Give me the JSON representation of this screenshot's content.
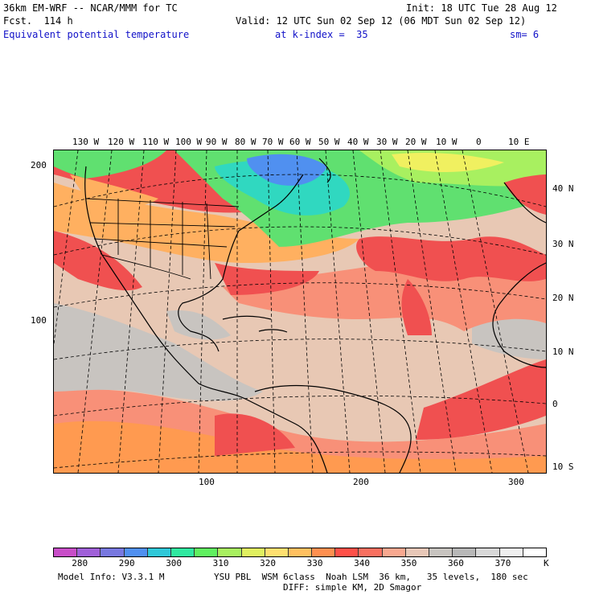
{
  "header": {
    "model": "36km EM-WRF -- NCAR/MMM for TC",
    "init": "Init: 18 UTC Tue 28 Aug 12",
    "forecast": "Fcst.  114 h",
    "valid": "Valid: 12 UTC Sun 02 Sep 12 (06 MDT Sun 02 Sep 12)",
    "field": "Equivalent potential temperature",
    "level": "at k-index =  35",
    "smoothing": "sm= 6"
  },
  "map": {
    "top_lon_labels": [
      "130 W",
      "120 W",
      "110 W",
      "100 W",
      "90 W",
      "80 W",
      "70 W",
      "60 W",
      "50 W",
      "40 W",
      "30 W",
      "20 W",
      "10 W",
      "0",
      "10 E"
    ],
    "right_lat_labels": [
      "40 N",
      "30 N",
      "20 N",
      "10 N",
      "0",
      "10 S"
    ],
    "left_grid_labels": [
      "200",
      "100"
    ],
    "bottom_grid_labels": [
      "100",
      "200",
      "300"
    ]
  },
  "colorbar": {
    "colors": [
      "#c84ec8",
      "#a060d8",
      "#7878e0",
      "#5090f0",
      "#30c8d8",
      "#30e8a0",
      "#60f060",
      "#a8f060",
      "#e0f060",
      "#ffe070",
      "#ffc060",
      "#ff9050",
      "#ff5048",
      "#f87060",
      "#f8a890",
      "#e8c8b8",
      "#c8c4c0",
      "#b8b8b8",
      "#d8d8d8",
      "#f0f0f0",
      "#ffffff"
    ],
    "labels": [
      "280",
      "290",
      "300",
      "310",
      "320",
      "330",
      "340",
      "350",
      "360",
      "370"
    ],
    "unit": "K"
  },
  "footer": {
    "model_info": "Model Info: V3.3.1 M",
    "physics": "YSU PBL  WSM 6class  Noah LSM  36 km,   35 levels,  180 sec",
    "diffusion": "DIFF: simple KM, 2D Smagor"
  },
  "legend_colors": {
    "ocean_low": "#e8c8b4",
    "gray_band": "#c8c4c0",
    "red_band": "#f05050",
    "salmon": "#f89078",
    "orange": "#ffb060",
    "yellow": "#f0f060",
    "green": "#60e070",
    "cyan": "#30d8c0",
    "blue": "#5090f0"
  }
}
